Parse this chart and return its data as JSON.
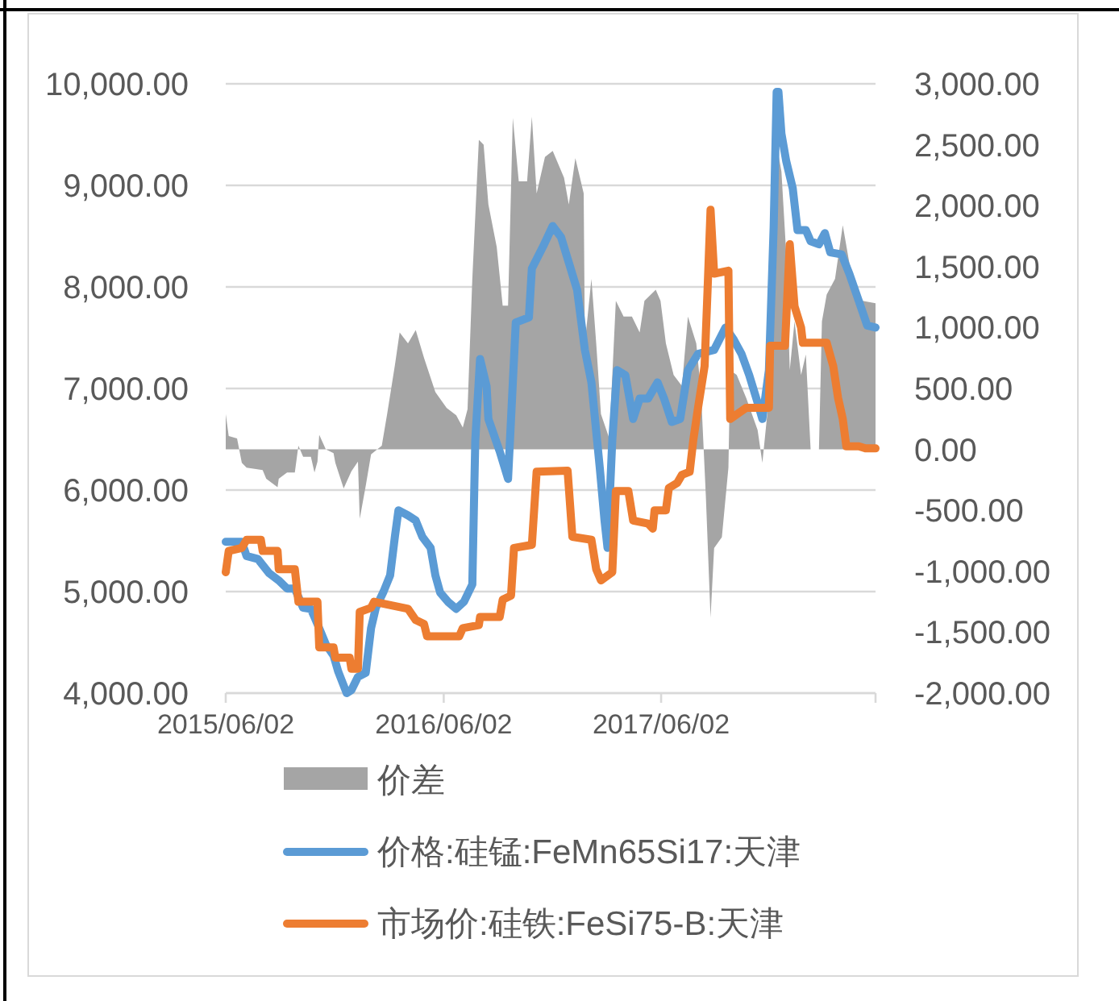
{
  "chart_data": {
    "type": "line",
    "xlim": [
      "2015-06-02",
      "2018-05-28"
    ],
    "xticks": [
      {
        "value": "2015-06-02",
        "label": "2015/06/02"
      },
      {
        "value": "2016-06-02",
        "label": "2016/06/02"
      },
      {
        "value": "2017-06-02",
        "label": "2017/06/02"
      },
      {
        "value": "2018-05-28",
        "label": null
      }
    ],
    "ylim": [
      4000,
      10000
    ],
    "yticks": [
      {
        "value": 4000,
        "label": "4,000.00"
      },
      {
        "value": 5000,
        "label": "5,000.00"
      },
      {
        "value": 6000,
        "label": "6,000.00"
      },
      {
        "value": 7000,
        "label": "7,000.00"
      },
      {
        "value": 8000,
        "label": "8,000.00"
      },
      {
        "value": 9000,
        "label": "9,000.00"
      },
      {
        "value": 10000,
        "label": "10,000.00"
      }
    ],
    "y2lim": [
      -2000,
      3000
    ],
    "y2ticks": [
      {
        "value": -2000,
        "label": "-2,000.00"
      },
      {
        "value": -1500,
        "label": "-1,500.00"
      },
      {
        "value": -1000,
        "label": "-1,000.00"
      },
      {
        "value": -500,
        "label": "-500.00"
      },
      {
        "value": 0,
        "label": "0.00"
      },
      {
        "value": 500,
        "label": "500.00"
      },
      {
        "value": 1000,
        "label": "1,000.00"
      },
      {
        "value": 1500,
        "label": "1,500.00"
      },
      {
        "value": 2000,
        "label": "2,000.00"
      },
      {
        "value": 2500,
        "label": "2,500.00"
      },
      {
        "value": 3000,
        "label": "3,000.00"
      }
    ],
    "grid": "y",
    "legend": "bottom",
    "series": [
      {
        "name": "价差",
        "type": "area",
        "axis": "y2",
        "color": "#a5a5a5",
        "x": [
          "2015-06-02",
          "2015-06-07",
          "2015-06-21",
          "2015-06-29",
          "2015-07-07",
          "2015-08-03",
          "2015-08-09",
          "2015-08-28",
          "2015-08-30",
          "2015-09-13",
          "2015-09-26",
          "2015-10-02",
          "2015-10-10",
          "2015-10-23",
          "2015-10-29",
          "2015-11-03",
          "2015-11-06",
          "2015-11-17",
          "2015-11-30",
          "2015-12-03",
          "2015-12-17",
          "2015-12-30",
          "2016-01-10",
          "2016-01-13",
          "2016-01-23",
          "2016-02-01",
          "2016-02-19",
          "2016-02-28",
          "2016-03-12",
          "2016-03-20",
          "2016-04-03",
          "2016-04-16",
          "2016-04-30",
          "2016-05-19",
          "2016-06-07",
          "2016-06-23",
          "2016-07-04",
          "2016-07-12",
          "2016-07-20",
          "2016-07-31",
          "2016-08-08",
          "2016-08-16",
          "2016-08-30",
          "2016-09-09",
          "2016-09-18",
          "2016-09-26",
          "2016-10-06",
          "2016-10-20",
          "2016-10-28",
          "2016-11-05",
          "2016-11-19",
          "2016-12-02",
          "2016-12-21",
          "2016-12-29",
          "2017-01-09",
          "2017-01-23",
          "2017-01-25",
          "2017-02-05",
          "2017-02-13",
          "2017-02-21",
          "2017-03-07",
          "2017-03-18",
          "2017-03-31",
          "2017-04-14",
          "2017-04-27",
          "2017-05-05",
          "2017-05-24",
          "2017-06-01",
          "2017-06-10",
          "2017-06-23",
          "2017-07-07",
          "2017-07-17",
          "2017-07-31",
          "2017-08-08",
          "2017-08-16",
          "2017-08-24",
          "2017-08-30",
          "2017-09-12",
          "2017-09-23",
          "2017-09-26",
          "2017-10-07",
          "2017-10-23",
          "2017-11-11",
          "2017-11-19",
          "2017-12-02",
          "2017-12-13",
          "2017-12-21",
          "2017-12-29",
          "2018-01-04",
          "2018-01-12",
          "2018-01-23",
          "2018-01-31",
          "2018-02-08",
          "2018-02-22",
          "2018-02-27",
          "2018-03-07",
          "2018-03-21",
          "2018-04-03",
          "2018-04-14",
          "2018-04-22",
          "2018-05-06",
          "2018-05-28"
        ],
        "values": [
          290,
          110,
          90,
          -110,
          -150,
          -170,
          -240,
          -310,
          -240,
          -190,
          -190,
          30,
          -60,
          -60,
          -190,
          -100,
          120,
          0,
          -30,
          -110,
          -320,
          -180,
          -100,
          -570,
          -300,
          -40,
          30,
          290,
          690,
          960,
          870,
          980,
          750,
          470,
          340,
          280,
          180,
          330,
          1400,
          2540,
          2500,
          2010,
          1660,
          1180,
          1180,
          2720,
          2200,
          2200,
          2730,
          2100,
          2400,
          2450,
          2230,
          2010,
          2390,
          2100,
          870,
          1400,
          870,
          290,
          90,
          1220,
          1090,
          1090,
          960,
          1220,
          1310,
          1220,
          870,
          610,
          520,
          1090,
          870,
          470,
          -370,
          -1380,
          -810,
          -720,
          -150,
          650,
          610,
          420,
          160,
          -110,
          520,
          2500,
          2280,
          1610,
          650,
          1050,
          610,
          780,
          0,
          0,
          1050,
          1270,
          1400,
          1840,
          1530,
          1400,
          1220,
          1200
        ]
      },
      {
        "name": "价格:硅锰:FeMn65Si17:天津",
        "color": "#5b9bd5",
        "x": [
          "2015-06-02",
          "2015-06-29",
          "2015-07-07",
          "2015-07-26",
          "2015-08-14",
          "2015-08-30",
          "2015-09-13",
          "2015-09-26",
          "2015-10-10",
          "2015-10-23",
          "2015-11-03",
          "2015-11-17",
          "2015-11-30",
          "2015-12-08",
          "2015-12-22",
          "2015-12-30",
          "2016-01-10",
          "2016-01-23",
          "2016-02-01",
          "2016-02-09",
          "2016-02-22",
          "2016-03-04",
          "2016-03-12",
          "2016-03-18",
          "2016-04-03",
          "2016-04-16",
          "2016-04-27",
          "2016-05-11",
          "2016-05-19",
          "2016-05-27",
          "2016-06-09",
          "2016-06-23",
          "2016-07-06",
          "2016-07-20",
          "2016-07-25",
          "2016-08-02",
          "2016-08-13",
          "2016-08-16",
          "2016-09-04",
          "2016-09-18",
          "2016-09-23",
          "2016-10-01",
          "2016-10-23",
          "2016-10-28",
          "2016-11-16",
          "2016-12-02",
          "2016-12-16",
          "2016-12-29",
          "2017-01-12",
          "2017-01-25",
          "2017-02-05",
          "2017-02-19",
          "2017-02-27",
          "2017-03-04",
          "2017-03-12",
          "2017-03-20",
          "2017-04-03",
          "2017-04-16",
          "2017-04-27",
          "2017-05-11",
          "2017-05-27",
          "2017-06-07",
          "2017-06-20",
          "2017-07-04",
          "2017-07-17",
          "2017-08-03",
          "2017-08-30",
          "2017-09-18",
          "2017-10-01",
          "2017-10-15",
          "2017-10-28",
          "2017-11-11",
          "2017-11-19",
          "2017-11-30",
          "2017-12-08",
          "2017-12-13",
          "2017-12-16",
          "2017-12-21",
          "2017-12-29",
          "2018-01-09",
          "2018-01-17",
          "2018-01-31",
          "2018-02-08",
          "2018-02-22",
          "2018-03-04",
          "2018-03-13",
          "2018-04-01",
          "2018-04-14",
          "2018-04-30",
          "2018-05-14",
          "2018-05-28"
        ],
        "values": [
          5490,
          5490,
          5350,
          5320,
          5180,
          5110,
          5030,
          5030,
          4840,
          4830,
          4680,
          4480,
          4370,
          4210,
          4000,
          4030,
          4160,
          4200,
          4640,
          4840,
          5000,
          5160,
          5540,
          5800,
          5750,
          5700,
          5540,
          5430,
          5160,
          4990,
          4900,
          4830,
          4900,
          5070,
          6490,
          7290,
          7020,
          6700,
          6380,
          6110,
          6700,
          7650,
          7700,
          8180,
          8400,
          8600,
          8490,
          8240,
          7970,
          7380,
          7060,
          6220,
          5700,
          5430,
          6490,
          7180,
          7130,
          6700,
          6900,
          6900,
          7060,
          6900,
          6670,
          6700,
          7180,
          7340,
          7380,
          7600,
          7490,
          7340,
          7130,
          6860,
          6700,
          7180,
          8600,
          9920,
          9920,
          9510,
          9240,
          8970,
          8560,
          8560,
          8450,
          8420,
          8530,
          8340,
          8320,
          8130,
          7860,
          7620,
          7600
        ]
      },
      {
        "name": "市场价:硅铁:FeSi75-B:天津",
        "color": "#ed7d31",
        "x": [
          "2015-06-02",
          "2015-06-07",
          "2015-06-29",
          "2015-07-07",
          "2015-07-31",
          "2015-08-03",
          "2015-08-28",
          "2015-08-30",
          "2015-09-26",
          "2015-10-02",
          "2015-11-03",
          "2015-11-06",
          "2015-11-30",
          "2015-12-03",
          "2015-12-27",
          "2015-12-30",
          "2016-01-10",
          "2016-01-13",
          "2016-02-01",
          "2016-02-06",
          "2016-04-03",
          "2016-04-16",
          "2016-04-30",
          "2016-05-05",
          "2016-06-28",
          "2016-07-04",
          "2016-07-31",
          "2016-08-02",
          "2016-09-04",
          "2016-09-09",
          "2016-09-23",
          "2016-09-28",
          "2016-10-28",
          "2016-11-05",
          "2016-12-27",
          "2017-01-04",
          "2017-02-05",
          "2017-02-13",
          "2017-02-21",
          "2017-03-12",
          "2017-03-18",
          "2017-04-08",
          "2017-04-16",
          "2017-05-11",
          "2017-05-19",
          "2017-05-22",
          "2017-06-10",
          "2017-06-15",
          "2017-06-29",
          "2017-07-07",
          "2017-07-20",
          "2017-07-26",
          "2017-08-03",
          "2017-08-14",
          "2017-08-19",
          "2017-08-24",
          "2017-08-30",
          "2017-09-23",
          "2017-09-26",
          "2017-10-23",
          "2017-11-30",
          "2017-12-02",
          "2017-12-27",
          "2018-01-04",
          "2018-01-12",
          "2018-01-23",
          "2018-01-26",
          "2018-03-07",
          "2018-03-18",
          "2018-03-26",
          "2018-04-03",
          "2018-04-09",
          "2018-04-30",
          "2018-05-11",
          "2018-05-28"
        ],
        "values": [
          5190,
          5400,
          5430,
          5510,
          5510,
          5400,
          5400,
          5220,
          5220,
          4900,
          4900,
          4450,
          4450,
          4350,
          4350,
          4240,
          4240,
          4800,
          4840,
          4900,
          4830,
          4720,
          4680,
          4560,
          4560,
          4640,
          4670,
          4750,
          4750,
          4920,
          4960,
          5430,
          5460,
          6180,
          6190,
          5540,
          5510,
          5220,
          5110,
          5190,
          5990,
          5990,
          5700,
          5670,
          5620,
          5800,
          5800,
          6020,
          6070,
          6150,
          6180,
          6490,
          6810,
          7220,
          7970,
          8760,
          8130,
          8160,
          6700,
          6810,
          6810,
          7420,
          7420,
          8420,
          7810,
          7600,
          7450,
          7450,
          7220,
          6910,
          6700,
          6430,
          6430,
          6410,
          6410
        ]
      }
    ]
  }
}
